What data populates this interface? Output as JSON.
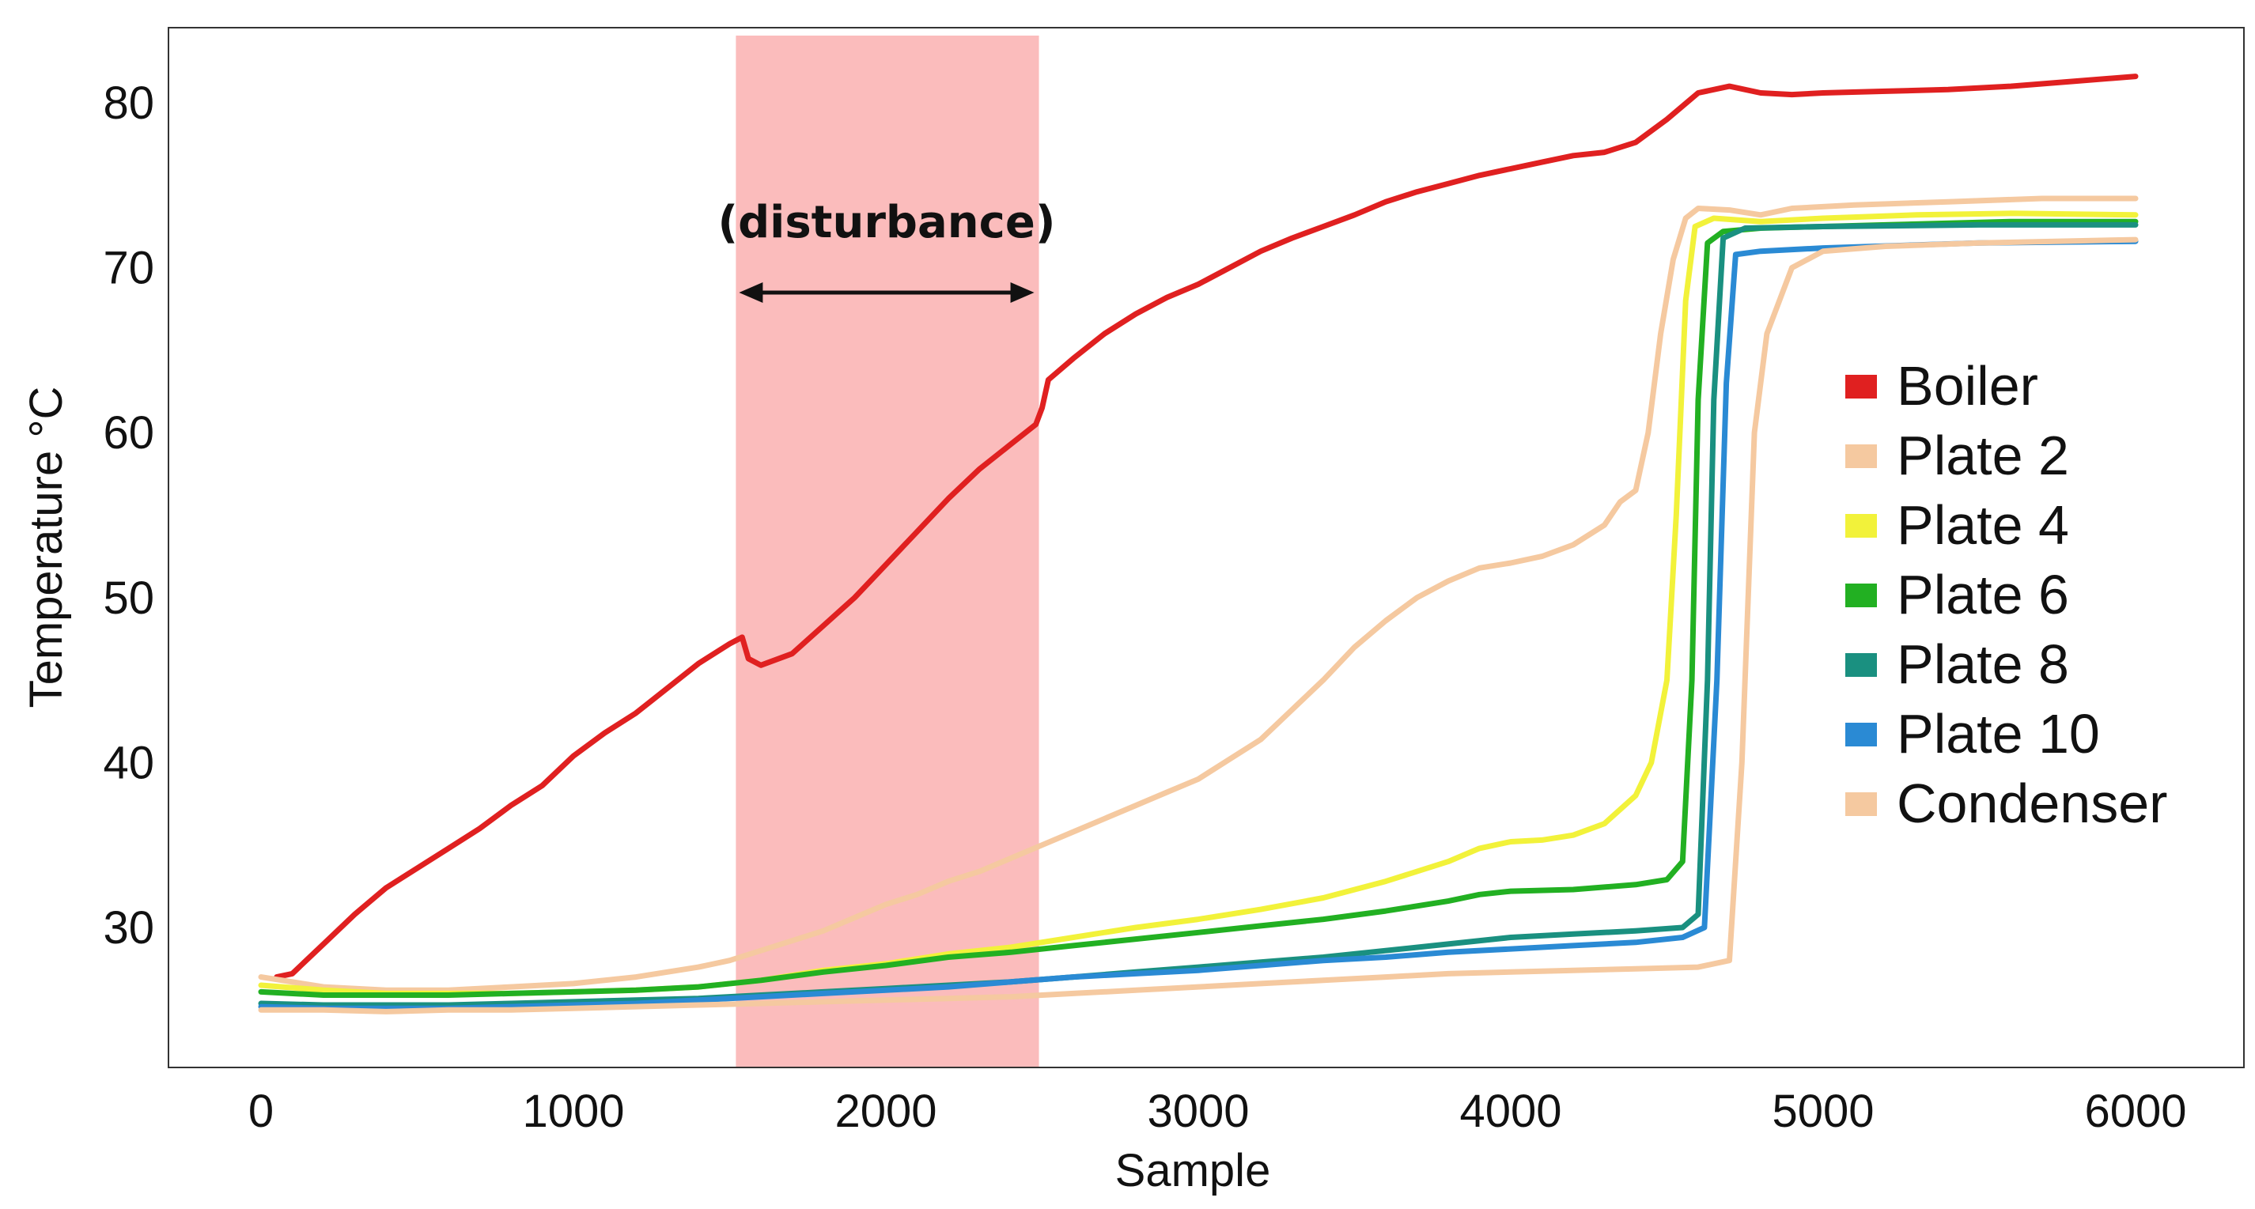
{
  "chart_data": {
    "type": "line",
    "title": "",
    "xlabel": "Sample",
    "ylabel": "Temperature °C",
    "xlim": [
      -300,
      6150
    ],
    "ylim": [
      22,
      84
    ],
    "xticks": [
      0,
      1000,
      2000,
      3000,
      4000,
      5000,
      6000
    ],
    "yticks": [
      30,
      40,
      50,
      60,
      70,
      80
    ],
    "grid": false,
    "legend_position": "right",
    "shaded_region": {
      "x": [
        1520,
        2490
      ],
      "color": "#fbbcbc",
      "label": "(disturbance)"
    },
    "series": [
      {
        "name": "Boiler",
        "color": "#e02020",
        "points": [
          [
            50,
            27
          ],
          [
            100,
            27.2
          ],
          [
            200,
            29
          ],
          [
            300,
            30.8
          ],
          [
            400,
            32.4
          ],
          [
            500,
            33.6
          ],
          [
            600,
            34.8
          ],
          [
            700,
            36
          ],
          [
            800,
            37.4
          ],
          [
            900,
            38.6
          ],
          [
            1000,
            40.4
          ],
          [
            1100,
            41.8
          ],
          [
            1200,
            43
          ],
          [
            1300,
            44.5
          ],
          [
            1400,
            46
          ],
          [
            1500,
            47.2
          ],
          [
            1540,
            47.6
          ],
          [
            1560,
            46.3
          ],
          [
            1600,
            45.9
          ],
          [
            1700,
            46.6
          ],
          [
            1800,
            48.3
          ],
          [
            1900,
            50
          ],
          [
            2000,
            52
          ],
          [
            2100,
            54
          ],
          [
            2200,
            56
          ],
          [
            2300,
            57.8
          ],
          [
            2400,
            59.3
          ],
          [
            2480,
            60.5
          ],
          [
            2500,
            61.5
          ],
          [
            2520,
            63.2
          ],
          [
            2600,
            64.5
          ],
          [
            2700,
            66
          ],
          [
            2800,
            67.2
          ],
          [
            2900,
            68.2
          ],
          [
            3000,
            69
          ],
          [
            3100,
            70
          ],
          [
            3200,
            71
          ],
          [
            3300,
            71.8
          ],
          [
            3400,
            72.5
          ],
          [
            3500,
            73.2
          ],
          [
            3600,
            74
          ],
          [
            3700,
            74.6
          ],
          [
            3800,
            75.1
          ],
          [
            3900,
            75.6
          ],
          [
            4000,
            76
          ],
          [
            4100,
            76.4
          ],
          [
            4200,
            76.8
          ],
          [
            4300,
            77
          ],
          [
            4400,
            77.6
          ],
          [
            4500,
            79
          ],
          [
            4600,
            80.6
          ],
          [
            4700,
            81
          ],
          [
            4800,
            80.6
          ],
          [
            4900,
            80.5
          ],
          [
            5000,
            80.6
          ],
          [
            5200,
            80.7
          ],
          [
            5400,
            80.8
          ],
          [
            5600,
            81
          ],
          [
            5800,
            81.3
          ],
          [
            6000,
            81.6
          ]
        ]
      },
      {
        "name": "Plate 2",
        "color": "#f5c9a0",
        "points": [
          [
            0,
            27
          ],
          [
            200,
            26.4
          ],
          [
            400,
            26.2
          ],
          [
            600,
            26.2
          ],
          [
            800,
            26.4
          ],
          [
            1000,
            26.6
          ],
          [
            1200,
            27
          ],
          [
            1400,
            27.6
          ],
          [
            1500,
            28
          ],
          [
            1600,
            28.6
          ],
          [
            1700,
            29.2
          ],
          [
            1800,
            29.8
          ],
          [
            1900,
            30.6
          ],
          [
            2000,
            31.4
          ],
          [
            2100,
            32
          ],
          [
            2200,
            32.8
          ],
          [
            2300,
            33.4
          ],
          [
            2400,
            34.2
          ],
          [
            2500,
            35
          ],
          [
            2600,
            35.8
          ],
          [
            2700,
            36.6
          ],
          [
            2800,
            37.4
          ],
          [
            2900,
            38.2
          ],
          [
            3000,
            39
          ],
          [
            3100,
            40.2
          ],
          [
            3200,
            41.4
          ],
          [
            3300,
            43.2
          ],
          [
            3400,
            45
          ],
          [
            3500,
            47
          ],
          [
            3600,
            48.6
          ],
          [
            3700,
            50
          ],
          [
            3800,
            51
          ],
          [
            3900,
            51.8
          ],
          [
            4000,
            52.1
          ],
          [
            4100,
            52.5
          ],
          [
            4200,
            53.2
          ],
          [
            4300,
            54.4
          ],
          [
            4350,
            55.8
          ],
          [
            4400,
            56.5
          ],
          [
            4440,
            60
          ],
          [
            4480,
            66
          ],
          [
            4520,
            70.5
          ],
          [
            4560,
            73
          ],
          [
            4600,
            73.6
          ],
          [
            4700,
            73.5
          ],
          [
            4800,
            73.2
          ],
          [
            4900,
            73.6
          ],
          [
            5100,
            73.8
          ],
          [
            5400,
            74
          ],
          [
            5700,
            74.2
          ],
          [
            6000,
            74.2
          ]
        ]
      },
      {
        "name": "Plate 4",
        "color": "#f2f23a",
        "points": [
          [
            0,
            26.5
          ],
          [
            200,
            26.2
          ],
          [
            400,
            26
          ],
          [
            600,
            26
          ],
          [
            800,
            26
          ],
          [
            1000,
            26.1
          ],
          [
            1200,
            26.2
          ],
          [
            1400,
            26.4
          ],
          [
            1600,
            26.8
          ],
          [
            1800,
            27.4
          ],
          [
            2000,
            27.8
          ],
          [
            2200,
            28.4
          ],
          [
            2400,
            28.8
          ],
          [
            2600,
            29.4
          ],
          [
            2800,
            30
          ],
          [
            3000,
            30.5
          ],
          [
            3200,
            31.1
          ],
          [
            3400,
            31.8
          ],
          [
            3600,
            32.8
          ],
          [
            3800,
            34
          ],
          [
            3900,
            34.8
          ],
          [
            4000,
            35.2
          ],
          [
            4100,
            35.3
          ],
          [
            4200,
            35.6
          ],
          [
            4300,
            36.3
          ],
          [
            4400,
            38
          ],
          [
            4450,
            40
          ],
          [
            4500,
            45
          ],
          [
            4530,
            55
          ],
          [
            4560,
            68
          ],
          [
            4590,
            72.5
          ],
          [
            4650,
            73
          ],
          [
            4800,
            72.8
          ],
          [
            5000,
            73
          ],
          [
            5300,
            73.2
          ],
          [
            5600,
            73.3
          ],
          [
            6000,
            73.2
          ]
        ]
      },
      {
        "name": "Plate 6",
        "color": "#22b022",
        "points": [
          [
            0,
            26.1
          ],
          [
            200,
            25.9
          ],
          [
            400,
            25.9
          ],
          [
            600,
            25.9
          ],
          [
            800,
            26
          ],
          [
            1000,
            26.1
          ],
          [
            1200,
            26.2
          ],
          [
            1400,
            26.4
          ],
          [
            1600,
            26.8
          ],
          [
            1800,
            27.3
          ],
          [
            2000,
            27.7
          ],
          [
            2200,
            28.2
          ],
          [
            2400,
            28.5
          ],
          [
            2600,
            28.9
          ],
          [
            2800,
            29.3
          ],
          [
            3000,
            29.7
          ],
          [
            3200,
            30.1
          ],
          [
            3400,
            30.5
          ],
          [
            3600,
            31
          ],
          [
            3800,
            31.6
          ],
          [
            3900,
            32
          ],
          [
            4000,
            32.2
          ],
          [
            4200,
            32.3
          ],
          [
            4400,
            32.6
          ],
          [
            4500,
            32.9
          ],
          [
            4550,
            34
          ],
          [
            4580,
            45
          ],
          [
            4600,
            62
          ],
          [
            4630,
            71.5
          ],
          [
            4680,
            72.2
          ],
          [
            4800,
            72.4
          ],
          [
            5200,
            72.6
          ],
          [
            5600,
            72.8
          ],
          [
            6000,
            72.8
          ]
        ]
      },
      {
        "name": "Plate 8",
        "color": "#1a9080",
        "points": [
          [
            0,
            25.4
          ],
          [
            200,
            25.3
          ],
          [
            400,
            25.3
          ],
          [
            600,
            25.3
          ],
          [
            800,
            25.4
          ],
          [
            1000,
            25.5
          ],
          [
            1200,
            25.6
          ],
          [
            1400,
            25.7
          ],
          [
            1600,
            25.9
          ],
          [
            1800,
            26.1
          ],
          [
            2000,
            26.3
          ],
          [
            2200,
            26.5
          ],
          [
            2400,
            26.7
          ],
          [
            2600,
            27
          ],
          [
            2800,
            27.3
          ],
          [
            3000,
            27.6
          ],
          [
            3200,
            27.9
          ],
          [
            3400,
            28.2
          ],
          [
            3600,
            28.6
          ],
          [
            3800,
            29
          ],
          [
            4000,
            29.4
          ],
          [
            4200,
            29.6
          ],
          [
            4400,
            29.8
          ],
          [
            4550,
            30
          ],
          [
            4600,
            30.8
          ],
          [
            4630,
            45
          ],
          [
            4650,
            62
          ],
          [
            4680,
            71.8
          ],
          [
            4750,
            72.4
          ],
          [
            5000,
            72.5
          ],
          [
            5500,
            72.6
          ],
          [
            6000,
            72.6
          ]
        ]
      },
      {
        "name": "Plate 10",
        "color": "#2a8ad4",
        "points": [
          [
            0,
            25.2
          ],
          [
            200,
            25.1
          ],
          [
            400,
            25.1
          ],
          [
            600,
            25.1
          ],
          [
            800,
            25.2
          ],
          [
            1000,
            25.3
          ],
          [
            1200,
            25.4
          ],
          [
            1400,
            25.6
          ],
          [
            1600,
            25.8
          ],
          [
            1800,
            26
          ],
          [
            2000,
            26.2
          ],
          [
            2200,
            26.4
          ],
          [
            2400,
            26.7
          ],
          [
            2600,
            27
          ],
          [
            2800,
            27.2
          ],
          [
            3000,
            27.4
          ],
          [
            3200,
            27.7
          ],
          [
            3400,
            28
          ],
          [
            3600,
            28.2
          ],
          [
            3800,
            28.5
          ],
          [
            4000,
            28.7
          ],
          [
            4200,
            28.9
          ],
          [
            4400,
            29.1
          ],
          [
            4550,
            29.4
          ],
          [
            4620,
            30
          ],
          [
            4660,
            45
          ],
          [
            4690,
            63
          ],
          [
            4720,
            70.8
          ],
          [
            4800,
            71
          ],
          [
            5000,
            71.2
          ],
          [
            5500,
            71.5
          ],
          [
            6000,
            71.6
          ]
        ]
      },
      {
        "name": "Condenser",
        "color": "#f5c9a0",
        "points": [
          [
            0,
            25
          ],
          [
            200,
            25
          ],
          [
            400,
            24.9
          ],
          [
            600,
            25
          ],
          [
            800,
            25
          ],
          [
            1000,
            25.1
          ],
          [
            1200,
            25.2
          ],
          [
            1400,
            25.3
          ],
          [
            1600,
            25.4
          ],
          [
            1800,
            25.5
          ],
          [
            2000,
            25.6
          ],
          [
            2200,
            25.7
          ],
          [
            2400,
            25.8
          ],
          [
            2600,
            26
          ],
          [
            2800,
            26.2
          ],
          [
            3000,
            26.4
          ],
          [
            3200,
            26.6
          ],
          [
            3400,
            26.8
          ],
          [
            3600,
            27
          ],
          [
            3800,
            27.2
          ],
          [
            4000,
            27.3
          ],
          [
            4200,
            27.4
          ],
          [
            4400,
            27.5
          ],
          [
            4600,
            27.6
          ],
          [
            4700,
            28
          ],
          [
            4740,
            40
          ],
          [
            4780,
            60
          ],
          [
            4820,
            66
          ],
          [
            4900,
            70
          ],
          [
            5000,
            71
          ],
          [
            5200,
            71.3
          ],
          [
            5500,
            71.5
          ],
          [
            6000,
            71.7
          ]
        ]
      }
    ],
    "legend": [
      "Boiler",
      "Plate 2",
      "Plate 4",
      "Plate 6",
      "Plate 8",
      "Plate 10",
      "Condenser"
    ]
  }
}
